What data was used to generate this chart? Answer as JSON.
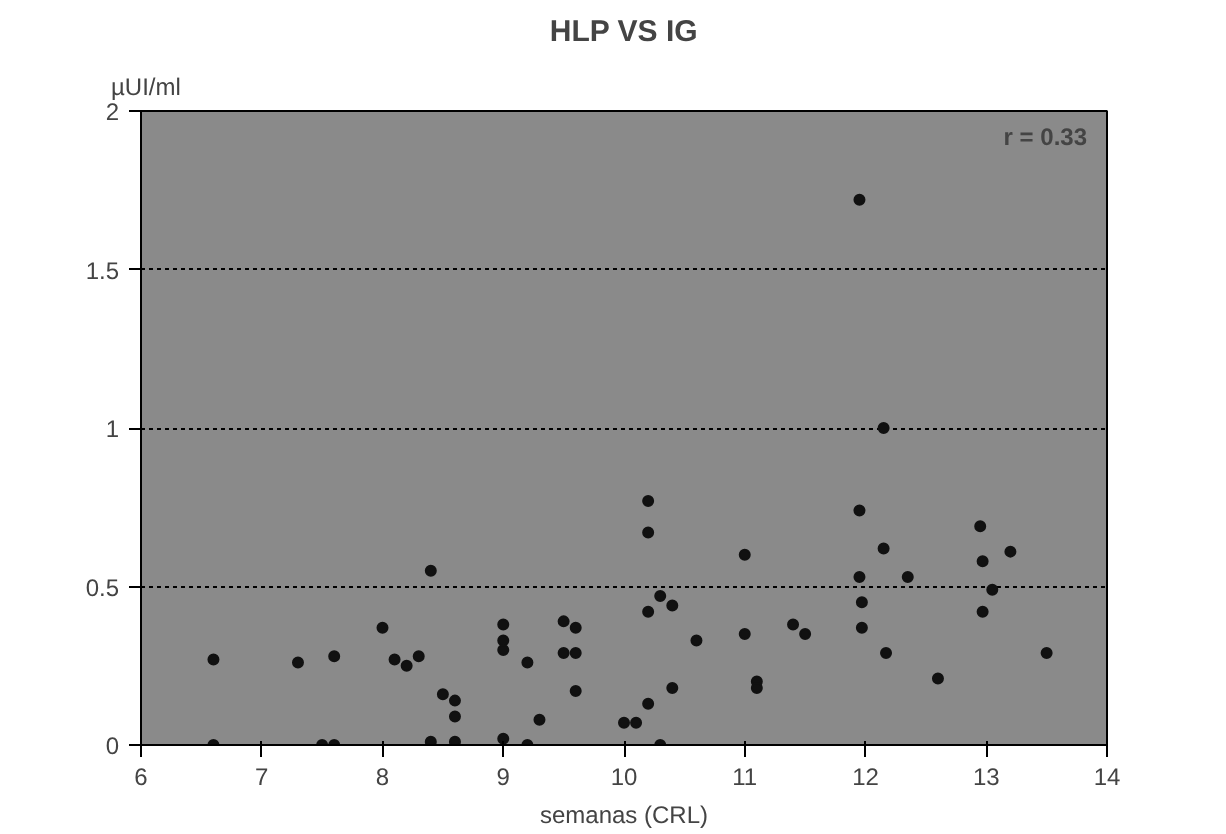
{
  "chart_data": {
    "type": "scatter",
    "title": "HLP VS IG",
    "xlabel": "semanas (CRL)",
    "ylabel": "µUI/ml",
    "annotations": [
      "r = 0.33"
    ],
    "xlim": [
      6,
      14
    ],
    "ylim": [
      0,
      2
    ],
    "xticks": [
      6,
      7,
      8,
      9,
      10,
      11,
      12,
      13,
      14
    ],
    "yticks": [
      0,
      0.5,
      1,
      1.5,
      2
    ],
    "grid": "y",
    "marker": "circle",
    "series": [
      {
        "color": "#111111",
        "x": [
          6.6,
          6.6,
          7.3,
          7.5,
          7.6,
          7.6,
          8.0,
          8.1,
          8.2,
          8.3,
          8.4,
          8.4,
          8.5,
          8.6,
          8.6,
          8.6,
          9.0,
          9.0,
          9.0,
          9.0,
          9.2,
          9.2,
          9.3,
          9.5,
          9.5,
          9.6,
          9.6,
          9.6,
          10.0,
          10.1,
          10.2,
          10.2,
          10.2,
          10.2,
          10.3,
          10.3,
          10.4,
          10.4,
          10.6,
          11.0,
          11.0,
          11.1,
          11.1,
          11.4,
          11.5,
          11.95,
          11.95,
          12.15,
          12.15,
          11.95,
          11.97,
          11.97,
          12.17,
          12.35,
          12.6,
          12.95,
          12.97,
          13.05,
          12.97,
          13.2,
          13.5
        ],
        "values": [
          0.27,
          0,
          0.26,
          0,
          0,
          0.28,
          0.37,
          0.27,
          0.25,
          0.28,
          0.55,
          0.01,
          0.16,
          0.14,
          0.09,
          0.01,
          0.38,
          0.33,
          0.3,
          0.02,
          0.26,
          0,
          0.08,
          0.39,
          0.29,
          0.37,
          0.29,
          0.17,
          0.07,
          0.07,
          0.77,
          0.67,
          0.42,
          0.13,
          0.47,
          0,
          0.44,
          0.18,
          0.33,
          0.6,
          0.35,
          0.2,
          0.18,
          0.38,
          0.35,
          1.72,
          0.74,
          1.0,
          0.62,
          0.53,
          0.45,
          0.37,
          0.29,
          0.53,
          0.21,
          0.69,
          0.58,
          0.49,
          0.42,
          0.61,
          0.29
        ]
      }
    ]
  }
}
